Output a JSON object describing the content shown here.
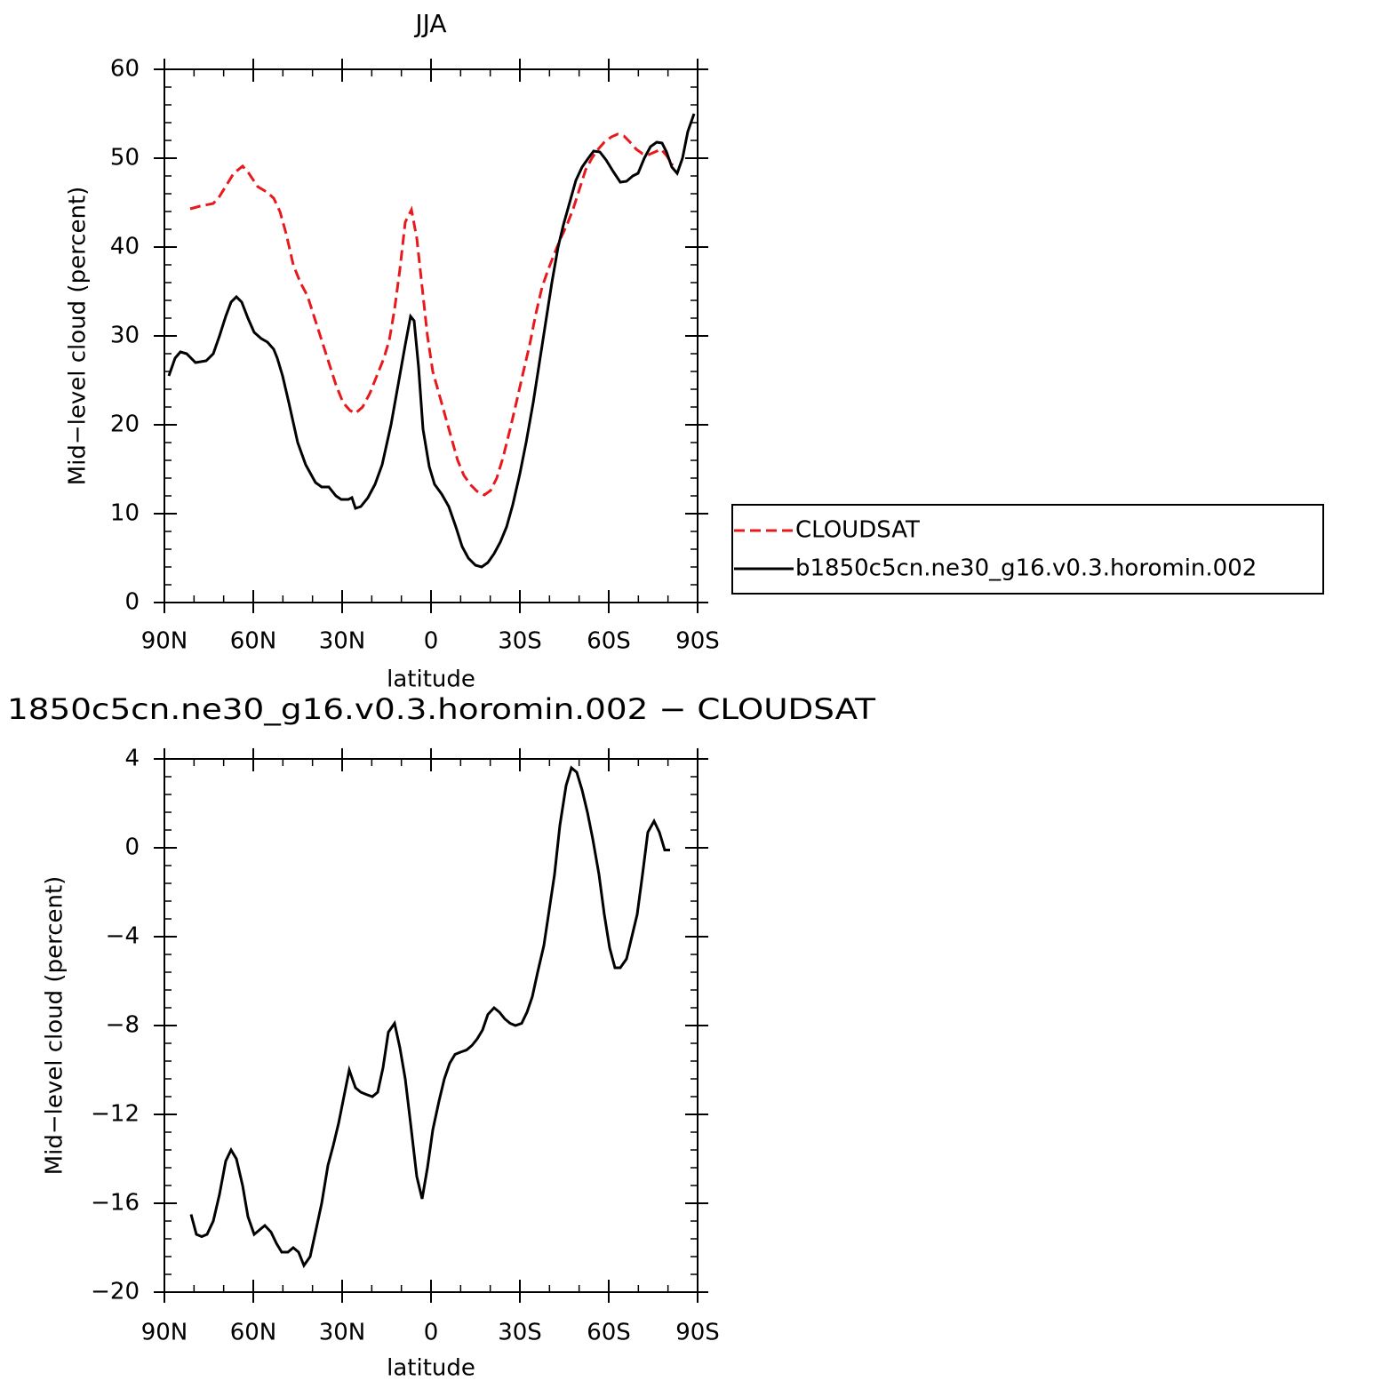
{
  "chart_data": [
    {
      "type": "line",
      "title": "JJA",
      "xlabel": "latitude",
      "ylabel": "Mid−level cloud (percent)",
      "xlim": [
        90,
        -90
      ],
      "ylim": [
        0,
        60
      ],
      "xticks": [
        {
          "value": 90,
          "label": "90N"
        },
        {
          "value": 60,
          "label": "60N"
        },
        {
          "value": 30,
          "label": "30N"
        },
        0,
        {
          "value": -30,
          "label": "30S"
        },
        {
          "value": -60,
          "label": "60S"
        },
        {
          "value": -90,
          "label": "90S"
        }
      ],
      "yticks": [
        0,
        10,
        20,
        30,
        40,
        50,
        60
      ],
      "legend": "right",
      "series": [
        {
          "name": "CLOUDSAT",
          "color": "#e8191d",
          "linestyle": "dashed",
          "x": [
            81.3,
            78,
            73.5,
            71.4,
            69,
            66.6,
            63.6,
            61.5,
            58.5,
            55.5,
            53.1,
            51,
            48.9,
            46.5,
            44.1,
            41.7,
            39.3,
            36.9,
            34.5,
            32.1,
            29.7,
            27.3,
            25.5,
            23.1,
            20.7,
            18.3,
            15.9,
            14.1,
            12.3,
            10.5,
            8.7,
            6.6,
            4.8,
            3,
            1.2,
            -0.6,
            -2.7,
            -4.8,
            -6.9,
            -9,
            -11.1,
            -13.5,
            -15.6,
            -18,
            -20.1,
            -22.2,
            -24.3,
            -26.7,
            -28.8,
            -31.2,
            -33.3,
            -35.4,
            -37.5,
            -39.6,
            -41.7,
            -43.8,
            -45.9,
            -48,
            -50.1,
            -52.2,
            -54.3,
            -56.4,
            -58.5,
            -60.9,
            -63,
            -65.1,
            -67.2,
            -69.3,
            -71.4,
            -73.5,
            -75.6,
            -77.7,
            -79.5,
            -81.6
          ],
          "values": [
            44.3,
            44.6,
            44.9,
            45.7,
            47,
            48.3,
            49.1,
            48.3,
            46.8,
            46.2,
            45.5,
            44,
            41.5,
            38,
            36,
            34.5,
            32,
            29.5,
            27,
            24.5,
            22.5,
            21.6,
            21.3,
            22,
            23.5,
            25.5,
            27.5,
            29.5,
            33,
            37.5,
            42.8,
            44.2,
            41,
            35.5,
            30,
            26,
            23.5,
            21,
            18.5,
            16,
            14.3,
            13.2,
            12.5,
            12.1,
            12.6,
            14,
            16.3,
            19.5,
            22.5,
            26,
            29,
            32.5,
            35.5,
            37.5,
            39.3,
            41,
            42.5,
            44.3,
            46.5,
            48.7,
            50,
            51,
            51.8,
            52.4,
            52.7,
            52.5,
            51.8,
            51,
            50.5,
            50.4,
            50.7,
            51,
            50.3,
            49.2
          ]
        },
        {
          "name": "b1850c5cn.ne30_g16.v0.3.horomin.002",
          "color": "#000000",
          "linestyle": "solid",
          "x": [
            88.5,
            86.4,
            84.6,
            82.5,
            79.5,
            75.9,
            73.5,
            71.4,
            69.3,
            67.5,
            65.7,
            63.9,
            61.8,
            59.7,
            57.3,
            55.2,
            53.1,
            51.9,
            50.1,
            48,
            45,
            42.3,
            39,
            36.9,
            34.5,
            32.1,
            30.3,
            27.9,
            26.7,
            25.5,
            23.7,
            21.3,
            18.9,
            16.5,
            13.5,
            11.1,
            8.7,
            6.9,
            5.7,
            4.2,
            2.7,
            0.6,
            -1.2,
            -3.6,
            -6,
            -8.4,
            -10.5,
            -12.6,
            -15,
            -17.1,
            -19.2,
            -21.3,
            -23.4,
            -25.5,
            -27.6,
            -30,
            -32.1,
            -34.5,
            -36.6,
            -38.7,
            -40.8,
            -42.9,
            -44.7,
            -46.8,
            -48.9,
            -51,
            -53.1,
            -54.9,
            -57,
            -59.1,
            -61.5,
            -63.9,
            -66,
            -68.1,
            -69.9,
            -72,
            -74.1,
            -76.2,
            -78,
            -79.5,
            -81.3,
            -83.1,
            -84.9,
            -86.7,
            -88.8
          ],
          "values": [
            25.5,
            27.5,
            28.2,
            28,
            27,
            27.2,
            28,
            30,
            32.2,
            33.8,
            34.4,
            33.8,
            32,
            30.4,
            29.7,
            29.3,
            28.5,
            27.5,
            25.5,
            22.5,
            18,
            15.5,
            13.5,
            13,
            13,
            12,
            11.6,
            11.6,
            11.8,
            10.6,
            10.8,
            11.8,
            13.3,
            15.5,
            20,
            24.5,
            29,
            32.2,
            31.7,
            26.5,
            19.5,
            15.3,
            13.3,
            12.2,
            10.8,
            8.5,
            6.3,
            5,
            4.2,
            4,
            4.5,
            5.5,
            6.8,
            8.5,
            11,
            14.5,
            18,
            22.5,
            27,
            31.5,
            36,
            40,
            42.5,
            45,
            47.5,
            49,
            50,
            50.8,
            50.7,
            49.8,
            48.5,
            47.3,
            47.4,
            48,
            48.3,
            50,
            51.3,
            51.8,
            51.7,
            50.7,
            49,
            48.3,
            50,
            53,
            55
          ]
        }
      ]
    },
    {
      "type": "line",
      "title": "1850c5cn.ne30_g16.v0.3.horomin.002 − CLOUDSAT",
      "xlabel": "latitude",
      "ylabel": "Mid−level cloud (percent)",
      "xlim": [
        90,
        -90
      ],
      "ylim": [
        -20,
        4
      ],
      "xticks": [
        {
          "value": 90,
          "label": "90N"
        },
        {
          "value": 60,
          "label": "60N"
        },
        {
          "value": 30,
          "label": "30N"
        },
        0,
        {
          "value": -30,
          "label": "30S"
        },
        {
          "value": -60,
          "label": "60S"
        },
        {
          "value": -90,
          "label": "90S"
        }
      ],
      "yticks": [
        4,
        0,
        {
          "value": -4,
          "label": "−4"
        },
        {
          "value": -8,
          "label": "−8"
        },
        {
          "value": -12,
          "label": "−12"
        },
        {
          "value": -16,
          "label": "−16"
        },
        {
          "value": -20,
          "label": "−20"
        }
      ],
      "series": [
        {
          "color": "#000000",
          "linestyle": "solid",
          "x": [
            81,
            79.2,
            77.4,
            75.6,
            73.5,
            71.4,
            69.3,
            67.5,
            65.7,
            63.6,
            61.8,
            59.7,
            57.9,
            56.1,
            54,
            52.2,
            50.4,
            48.3,
            46.5,
            44.7,
            42.9,
            40.8,
            39,
            36.9,
            34.8,
            33,
            31.2,
            29.4,
            27.6,
            25.5,
            23.7,
            21.9,
            19.8,
            18,
            16.2,
            14.4,
            12.3,
            10.5,
            8.7,
            6.9,
            4.8,
            3,
            1.2,
            -0.6,
            -2.7,
            -4.5,
            -6.3,
            -8.1,
            -9.9,
            -12,
            -13.8,
            -15.6,
            -17.4,
            -19.2,
            -21.3,
            -23.1,
            -24.9,
            -26.7,
            -28.5,
            -30.6,
            -32.4,
            -34.2,
            -36,
            -38.1,
            -39.9,
            -41.7,
            -43.5,
            -45.6,
            -47.4,
            -49.2,
            -51,
            -52.8,
            -54.6,
            -56.7,
            -58.5,
            -60.3,
            -62.1,
            -63.9,
            -66,
            -67.8,
            -69.6,
            -71.4,
            -73.2,
            -75.3,
            -77.1,
            -78.9,
            -80.7
          ],
          "values": [
            -16.5,
            -17.4,
            -17.5,
            -17.4,
            -16.8,
            -15.6,
            -14.1,
            -13.6,
            -14,
            -15.2,
            -16.6,
            -17.4,
            -17.2,
            -17,
            -17.3,
            -17.8,
            -18.2,
            -18.2,
            -18,
            -18.2,
            -18.8,
            -18.4,
            -17.3,
            -16,
            -14.3,
            -13.4,
            -12.4,
            -11.2,
            -10,
            -10.8,
            -11,
            -11.1,
            -11.2,
            -11,
            -9.9,
            -8.3,
            -7.9,
            -9,
            -10.4,
            -12.4,
            -14.8,
            -15.8,
            -14.4,
            -12.7,
            -11.4,
            -10.4,
            -9.7,
            -9.3,
            -9.2,
            -9.1,
            -8.9,
            -8.6,
            -8.2,
            -7.5,
            -7.2,
            -7.4,
            -7.7,
            -7.9,
            -8,
            -7.9,
            -7.4,
            -6.7,
            -5.6,
            -4.4,
            -2.8,
            -1.2,
            1,
            2.8,
            3.6,
            3.4,
            2.6,
            1.6,
            0.4,
            -1.2,
            -3,
            -4.5,
            -5.4,
            -5.4,
            -5,
            -4,
            -3,
            -1.2,
            0.7,
            1.2,
            0.7,
            -0.1,
            -0.1
          ]
        }
      ]
    }
  ]
}
